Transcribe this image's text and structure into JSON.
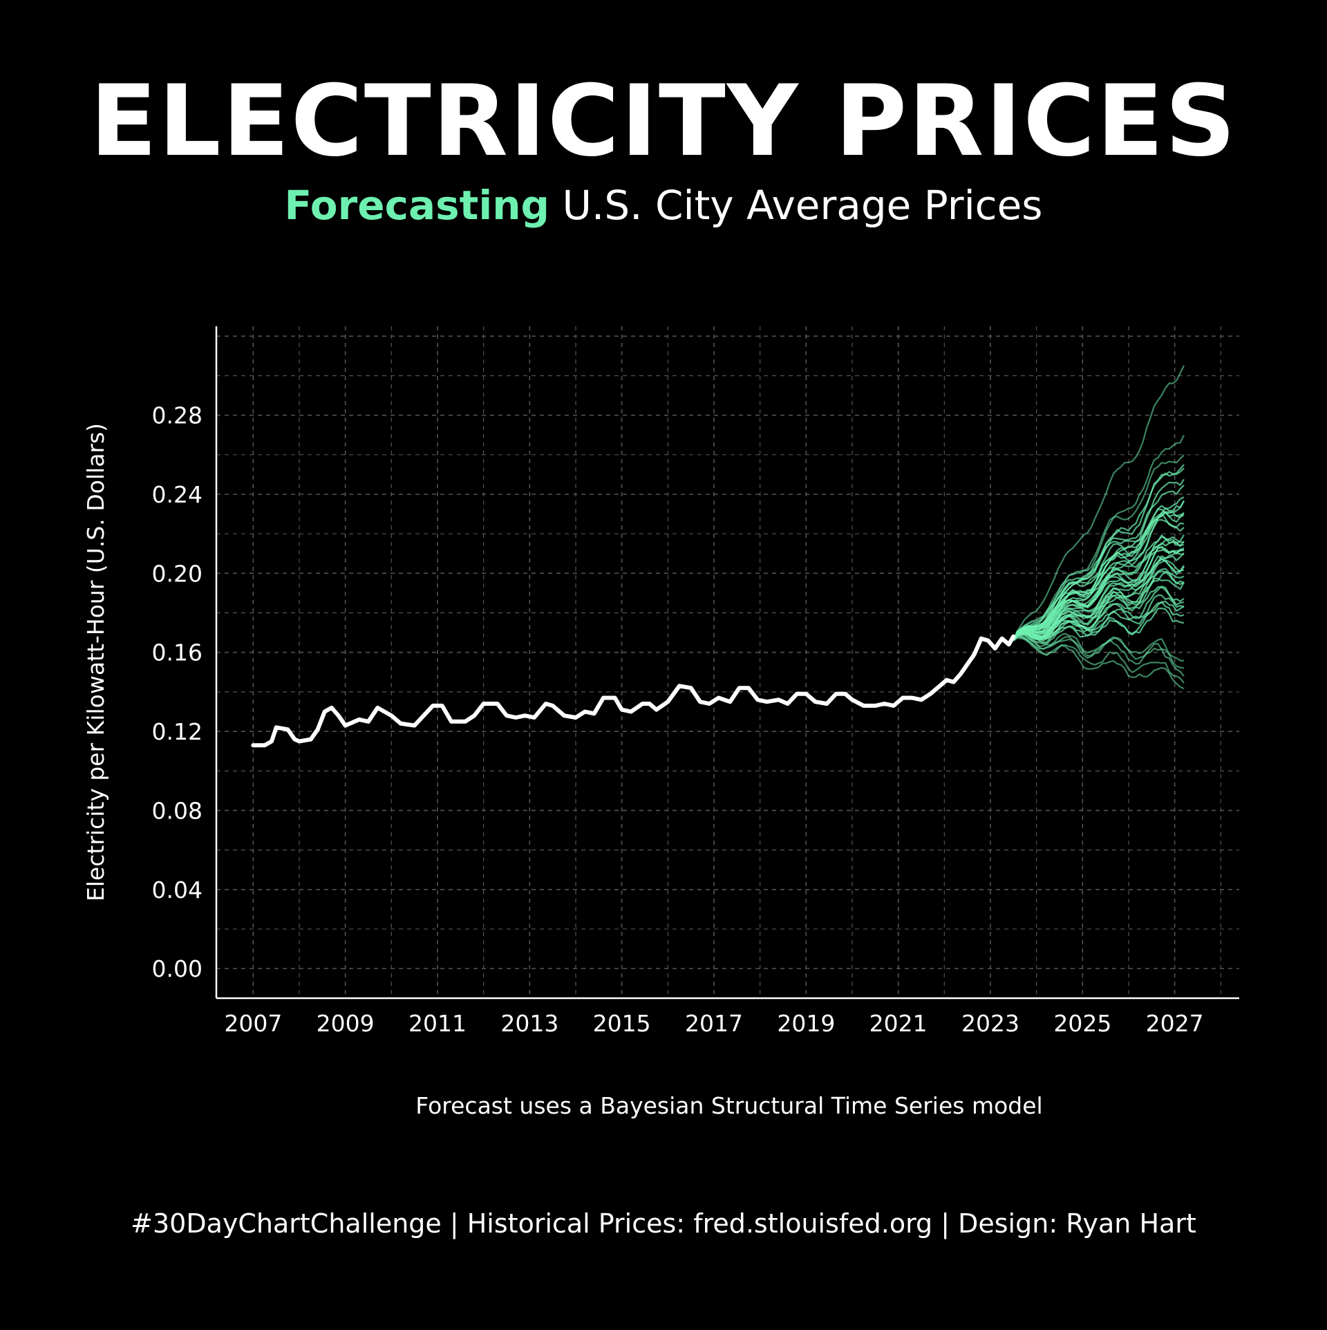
{
  "title": "ELECTRICITY PRICES",
  "subtitle": {
    "highlight": "Forecasting",
    "rest": " U.S. City Average Prices"
  },
  "note": "Forecast uses a Bayesian Structural Time Series model",
  "caption": "#30DayChartChallenge | Historical Prices: fred.stlouisfed.org | Design: Ryan Hart",
  "colors": {
    "background": "#000000",
    "history": "#ffffff",
    "forecast": "#6ef0b0",
    "grid": "#555555",
    "text": "#ffffff"
  },
  "chart_data": {
    "type": "line",
    "ylabel": "Electricity per Kilowatt-Hour (U.S. Dollars)",
    "xlabel": "",
    "xlim": [
      2006.2,
      2028.4
    ],
    "ylim": [
      -0.015,
      0.325
    ],
    "x_ticks": [
      "2007",
      "2009",
      "2011",
      "2013",
      "2015",
      "2017",
      "2019",
      "2021",
      "2023",
      "2025",
      "2027"
    ],
    "y_ticks": [
      "0.00",
      "0.04",
      "0.08",
      "0.12",
      "0.16",
      "0.20",
      "0.24",
      "0.28"
    ],
    "grid": true,
    "historical": {
      "points": [
        [
          2007.0,
          0.113
        ],
        [
          2007.25,
          0.113
        ],
        [
          2007.4,
          0.115
        ],
        [
          2007.5,
          0.122
        ],
        [
          2007.75,
          0.121
        ],
        [
          2007.9,
          0.116
        ],
        [
          2008.0,
          0.115
        ],
        [
          2008.25,
          0.116
        ],
        [
          2008.4,
          0.121
        ],
        [
          2008.55,
          0.13
        ],
        [
          2008.7,
          0.132
        ],
        [
          2008.85,
          0.128
        ],
        [
          2009.0,
          0.123
        ],
        [
          2009.3,
          0.126
        ],
        [
          2009.5,
          0.125
        ],
        [
          2009.7,
          0.132
        ],
        [
          2010.0,
          0.128
        ],
        [
          2010.2,
          0.124
        ],
        [
          2010.5,
          0.123
        ],
        [
          2010.7,
          0.128
        ],
        [
          2010.9,
          0.133
        ],
        [
          2011.1,
          0.133
        ],
        [
          2011.3,
          0.125
        ],
        [
          2011.6,
          0.125
        ],
        [
          2011.8,
          0.128
        ],
        [
          2012.0,
          0.134
        ],
        [
          2012.3,
          0.134
        ],
        [
          2012.5,
          0.128
        ],
        [
          2012.7,
          0.127
        ],
        [
          2012.9,
          0.128
        ],
        [
          2013.1,
          0.127
        ],
        [
          2013.35,
          0.134
        ],
        [
          2013.5,
          0.133
        ],
        [
          2013.75,
          0.128
        ],
        [
          2014.0,
          0.127
        ],
        [
          2014.2,
          0.13
        ],
        [
          2014.4,
          0.129
        ],
        [
          2014.6,
          0.137
        ],
        [
          2014.85,
          0.137
        ],
        [
          2015.0,
          0.131
        ],
        [
          2015.2,
          0.13
        ],
        [
          2015.45,
          0.134
        ],
        [
          2015.6,
          0.134
        ],
        [
          2015.75,
          0.131
        ],
        [
          2016.0,
          0.135
        ],
        [
          2016.25,
          0.143
        ],
        [
          2016.5,
          0.142
        ],
        [
          2016.7,
          0.135
        ],
        [
          2016.9,
          0.134
        ],
        [
          2017.1,
          0.137
        ],
        [
          2017.35,
          0.135
        ],
        [
          2017.55,
          0.142
        ],
        [
          2017.75,
          0.142
        ],
        [
          2017.95,
          0.136
        ],
        [
          2018.15,
          0.135
        ],
        [
          2018.4,
          0.136
        ],
        [
          2018.6,
          0.134
        ],
        [
          2018.8,
          0.139
        ],
        [
          2019.0,
          0.139
        ],
        [
          2019.2,
          0.135
        ],
        [
          2019.45,
          0.134
        ],
        [
          2019.65,
          0.139
        ],
        [
          2019.85,
          0.139
        ],
        [
          2020.0,
          0.136
        ],
        [
          2020.25,
          0.133
        ],
        [
          2020.5,
          0.133
        ],
        [
          2020.7,
          0.134
        ],
        [
          2020.9,
          0.133
        ],
        [
          2021.1,
          0.137
        ],
        [
          2021.3,
          0.137
        ],
        [
          2021.5,
          0.136
        ],
        [
          2021.7,
          0.139
        ],
        [
          2021.9,
          0.143
        ],
        [
          2022.05,
          0.146
        ],
        [
          2022.2,
          0.145
        ],
        [
          2022.35,
          0.149
        ],
        [
          2022.5,
          0.154
        ],
        [
          2022.65,
          0.159
        ],
        [
          2022.8,
          0.167
        ],
        [
          2022.95,
          0.166
        ],
        [
          2023.1,
          0.162
        ],
        [
          2023.25,
          0.167
        ],
        [
          2023.4,
          0.164
        ],
        [
          2023.5,
          0.168
        ]
      ]
    },
    "forecast": {
      "start": [
        2023.5,
        0.166
      ],
      "end_x": 2027.2,
      "end_values": [
        0.306,
        0.272,
        0.264,
        0.258,
        0.253,
        0.25,
        0.247,
        0.244,
        0.241,
        0.238,
        0.236,
        0.234,
        0.232,
        0.23,
        0.228,
        0.226,
        0.224,
        0.222,
        0.22,
        0.218,
        0.216,
        0.214,
        0.212,
        0.21,
        0.208,
        0.206,
        0.204,
        0.202,
        0.2,
        0.198,
        0.196,
        0.194,
        0.191,
        0.188,
        0.185,
        0.182,
        0.179,
        0.162,
        0.158,
        0.154,
        0.149,
        0.143
      ]
    }
  }
}
